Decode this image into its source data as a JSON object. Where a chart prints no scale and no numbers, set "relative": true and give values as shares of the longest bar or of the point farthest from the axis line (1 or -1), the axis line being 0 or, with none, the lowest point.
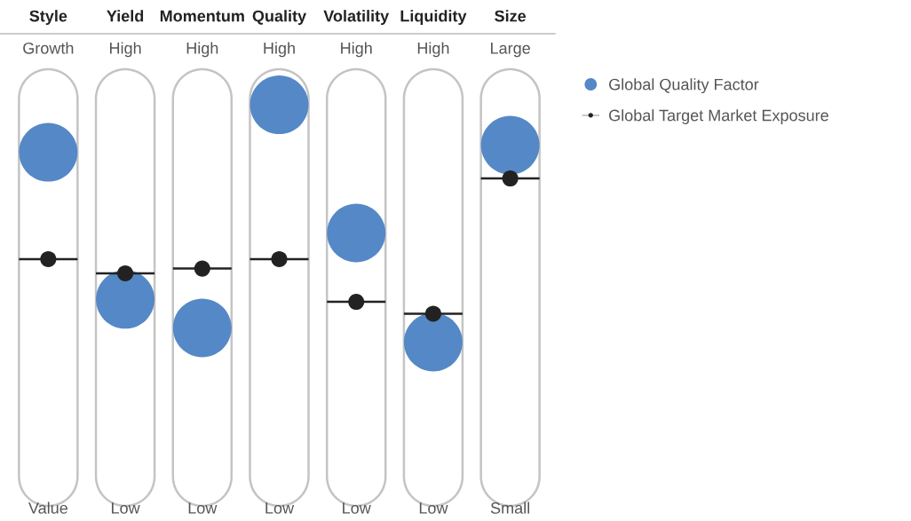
{
  "chart_data": {
    "type": "scatter",
    "relative": true,
    "marker": "circle",
    "legend": "right",
    "grid": false,
    "categories": [
      "Style",
      "Yield",
      "Momentum",
      "Quality",
      "Volatility",
      "Liquidity",
      "Size"
    ],
    "annotations": [
      "Growth",
      "High",
      "High",
      "High",
      "High",
      "High",
      "Large",
      "Value",
      "Low",
      "Low",
      "Low",
      "Low",
      "Low",
      "Small"
    ],
    "series": [
      {
        "name": "Global Quality Factor",
        "color": "#5588c6",
        "values": [
          0.8,
          0.18,
          0.06,
          1.0,
          0.46,
          0.0,
          0.83
        ]
      },
      {
        "name": "Global Target Market Exposure",
        "color": "#222222",
        "values": [
          0.35,
          0.29,
          0.31,
          0.35,
          0.17,
          0.12,
          0.69
        ]
      }
    ]
  }
}
